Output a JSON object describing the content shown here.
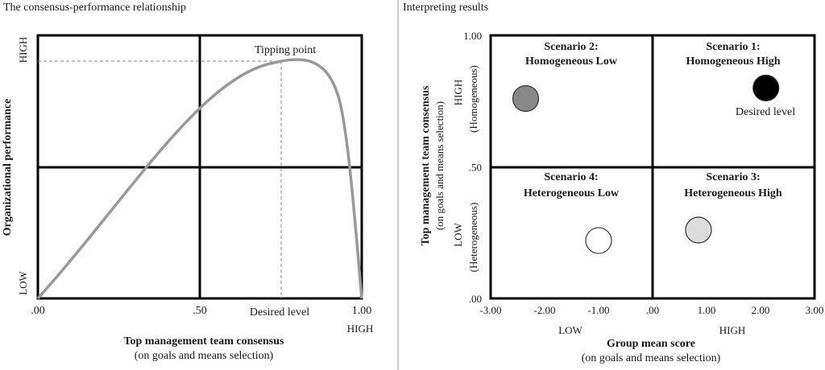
{
  "left_panel": {
    "heading": "The consensus-performance relationship",
    "y_axis_label": "Organizational performance",
    "y_high": "HIGH",
    "y_low": "LOW",
    "x_ticks": [
      ".00",
      ".50",
      "1.00"
    ],
    "x_high": "HIGH",
    "x_label": "Top management team consensus",
    "x_sublabel": "(on goals and means selection)",
    "peak_label": "Tipping point",
    "desired_label": "Desired level",
    "curve_color": "#999999"
  },
  "right_panel": {
    "heading": "Interpreting results",
    "y_label": "Top management team consensus",
    "y_sublabel": "(on goals and means selection)",
    "y_high": "HIGH",
    "y_high_sub": "(Homogeneous)",
    "y_low": "LOW",
    "y_low_sub": "(Heterogeneous)",
    "y_ticks": [
      "1.00",
      ".50",
      ".00"
    ],
    "x_ticks": [
      "-3.00",
      "-2.00",
      "-1.00",
      ".00",
      "1.00",
      "2.00",
      "3.00"
    ],
    "x_low": "LOW",
    "x_high": "HIGH",
    "x_label": "Group mean score",
    "x_sublabel": "(on goals and means selection)",
    "quadrants": [
      {
        "title": "Scenario 2:",
        "subtitle": "Homogeneous Low"
      },
      {
        "title": "Scenario 1:",
        "subtitle": "Homogeneous High"
      },
      {
        "title": "Scenario 4:",
        "subtitle": "Heterogeneous Low"
      },
      {
        "title": "Scenario 3:",
        "subtitle": "Heterogeneous High"
      }
    ],
    "desired_label": "Desired level",
    "points": [
      {
        "x": 2.1,
        "y": 0.8,
        "color": "#000000"
      },
      {
        "x": -2.35,
        "y": 0.76,
        "color": "#888888"
      },
      {
        "x": 0.85,
        "y": 0.26,
        "color": "#dddddd"
      },
      {
        "x": -1.0,
        "y": 0.22,
        "color": "#ffffff"
      }
    ]
  }
}
